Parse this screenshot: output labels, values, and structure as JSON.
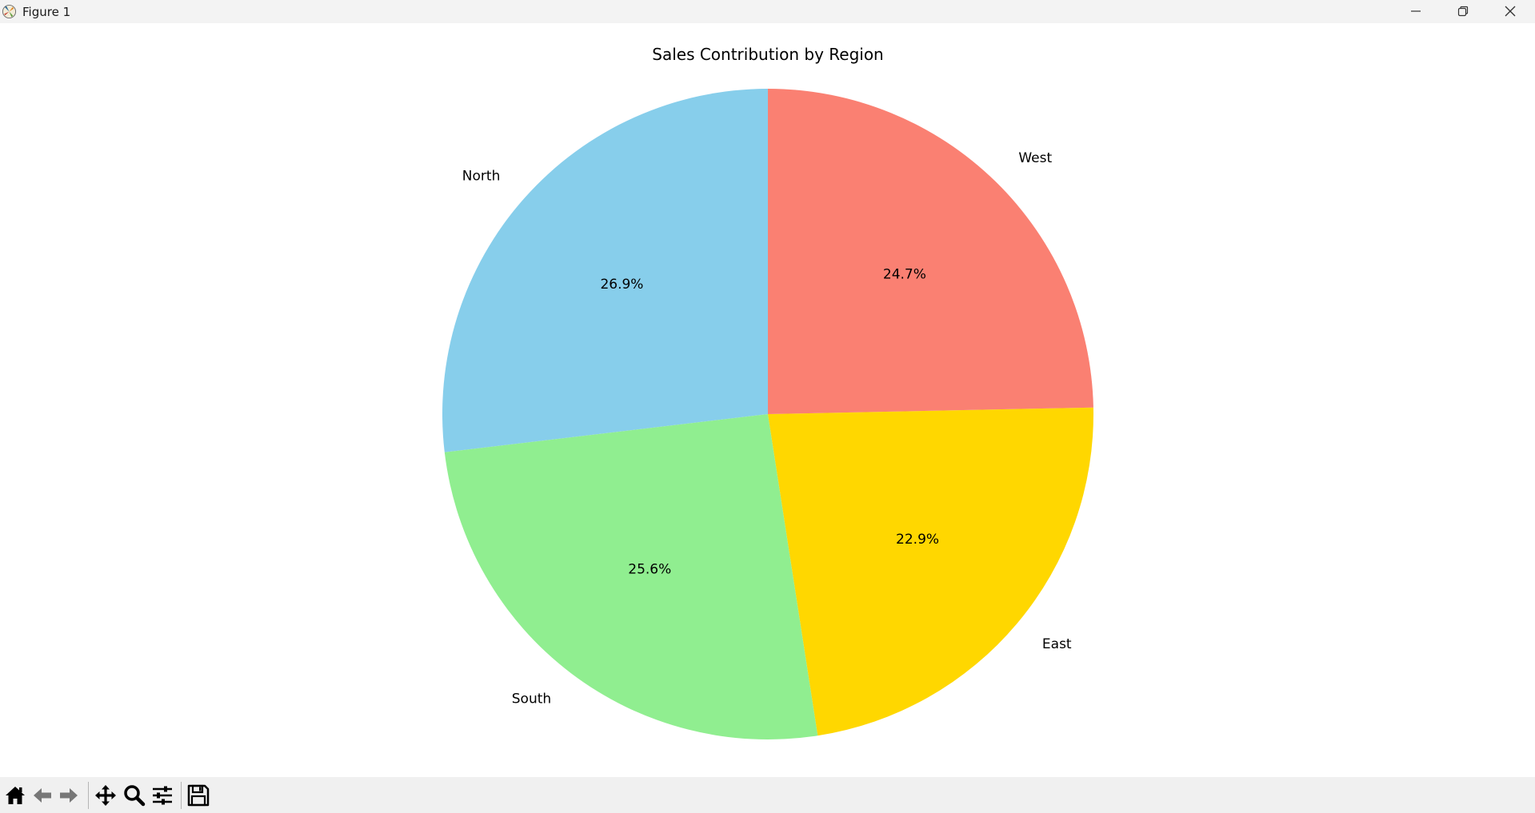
{
  "window": {
    "title": "Figure 1",
    "controls": {
      "minimize": "minimize-icon",
      "maximize": "restore-icon",
      "close": "close-icon"
    }
  },
  "toolbar": {
    "items": [
      {
        "name": "home-icon",
        "label": "Home"
      },
      {
        "name": "back-arrow-icon",
        "label": "Back"
      },
      {
        "name": "forward-arrow-icon",
        "label": "Forward"
      },
      {
        "name": "pan-icon",
        "label": "Pan"
      },
      {
        "name": "zoom-icon",
        "label": "Zoom"
      },
      {
        "name": "configure-subplots-icon",
        "label": "Configure subplots"
      },
      {
        "name": "save-icon",
        "label": "Save"
      }
    ]
  },
  "chart_data": {
    "type": "pie",
    "title": "Sales Contribution by Region",
    "categories": [
      "North",
      "South",
      "East",
      "West"
    ],
    "values": [
      26.9,
      25.6,
      22.9,
      24.7
    ],
    "labels": [
      "26.9%",
      "25.6%",
      "22.9%",
      "24.7%"
    ],
    "colors": [
      "#87ceeb",
      "#90ee90",
      "#ffd700",
      "#fa8072"
    ],
    "start_angle": 90,
    "direction": "counterclockwise",
    "legend": "none"
  }
}
